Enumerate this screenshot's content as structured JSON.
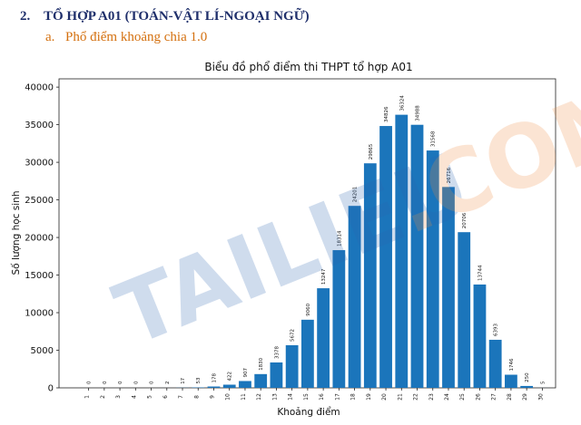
{
  "heading": {
    "number": "2.",
    "title": "TỔ HỢP A01 (TOÁN-VẬT LÍ-NGOẠI NGỮ)"
  },
  "subheading": {
    "marker": "a.",
    "text": "Phổ điểm khoảng chia 1.0"
  },
  "watermark": {
    "main": "TAILIEU",
    "suffix": ".COM"
  },
  "chart_data": {
    "type": "bar",
    "title": "Biểu đồ phổ điểm thi THPT tổ hợp A01",
    "x_label": "Khoảng điểm",
    "y_label": "Số lượng học sinh",
    "color": "#1b75bb",
    "categories": [
      "1",
      "2",
      "3",
      "4",
      "5",
      "6",
      "7",
      "8",
      "9",
      "10",
      "11",
      "12",
      "13",
      "14",
      "15",
      "16",
      "17",
      "18",
      "19",
      "20",
      "21",
      "22",
      "23",
      "24",
      "25",
      "26",
      "27",
      "28",
      "29",
      "30"
    ],
    "values": [
      0,
      0,
      0,
      0,
      0,
      2,
      17,
      53,
      178,
      422,
      907,
      1830,
      3378,
      5672,
      9060,
      13247,
      18314,
      24201,
      29865,
      34826,
      36324,
      34988,
      31568,
      26716,
      20706,
      13744,
      6393,
      1746,
      250,
      5
    ],
    "ylim": [
      0,
      41100
    ],
    "yticks": [
      0,
      5000,
      10000,
      15000,
      20000,
      25000,
      30000,
      35000,
      40000
    ],
    "grid": false
  }
}
